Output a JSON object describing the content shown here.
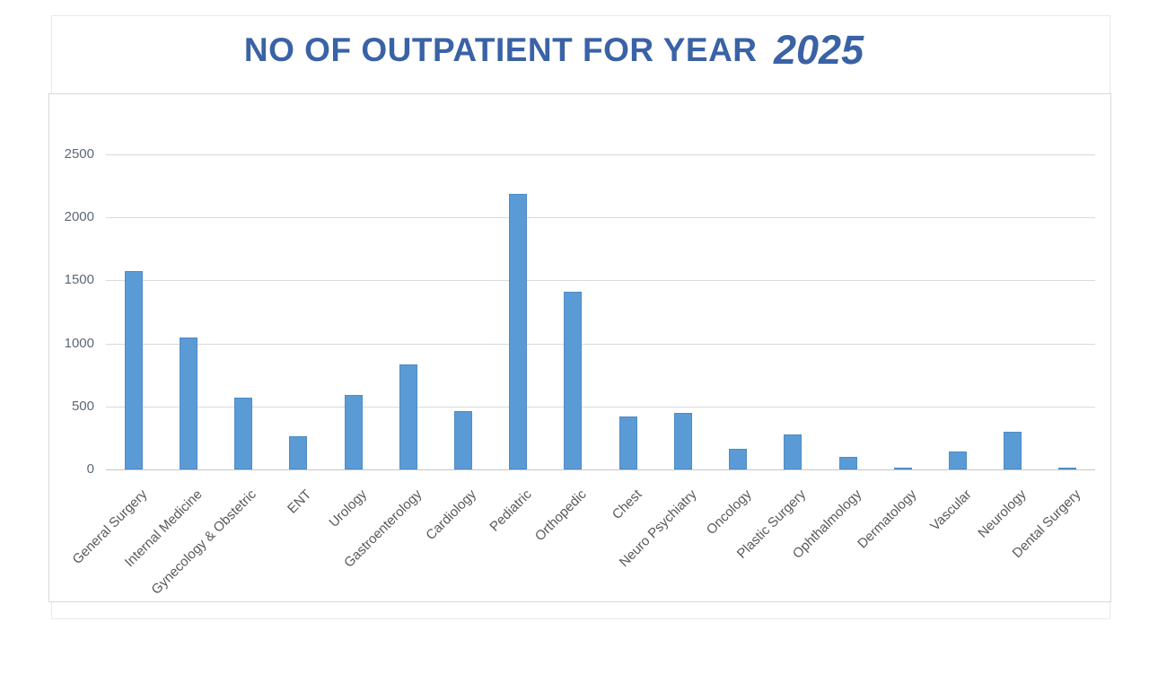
{
  "title": {
    "text": "NO OF OUTPATIENT FOR YEAR",
    "year": "2025"
  },
  "chart_data": {
    "type": "bar",
    "title": "NO OF OUTPATIENT FOR YEAR 2025",
    "categories": [
      "General Surgery",
      "Internal Medicine",
      "Gynecology & Obstetric",
      "ENT",
      "Urology",
      "Gastroenterology",
      "Cardiology",
      "Pediatric",
      "Orthopedic",
      "Chest",
      "Neuro Psychiatry",
      "Oncology",
      "Plastic Surgery",
      "Ophthalmology",
      "Dermatology",
      "Vascular",
      "Neurology",
      "Dental Surgery"
    ],
    "values": [
      1575,
      1050,
      570,
      260,
      590,
      835,
      465,
      2190,
      1410,
      420,
      450,
      165,
      280,
      100,
      15,
      145,
      300,
      15
    ],
    "xlabel": "",
    "ylabel": "",
    "ylim": [
      0,
      2500
    ],
    "ytick_step": 500,
    "yticks": [
      "0",
      "500",
      "1000",
      "1500",
      "2000",
      "2500"
    ],
    "grid": true,
    "legend": false
  },
  "colors": {
    "bar_fill": "#5b9bd5",
    "title_text": "#3a62a6",
    "gridline": "#d9d9d9",
    "axis_line": "#c6c6c6",
    "tick_text": "#5c6876",
    "category_text": "#595959",
    "plot_border": "#d9d9d9",
    "container_border": "#e9e9e9"
  }
}
